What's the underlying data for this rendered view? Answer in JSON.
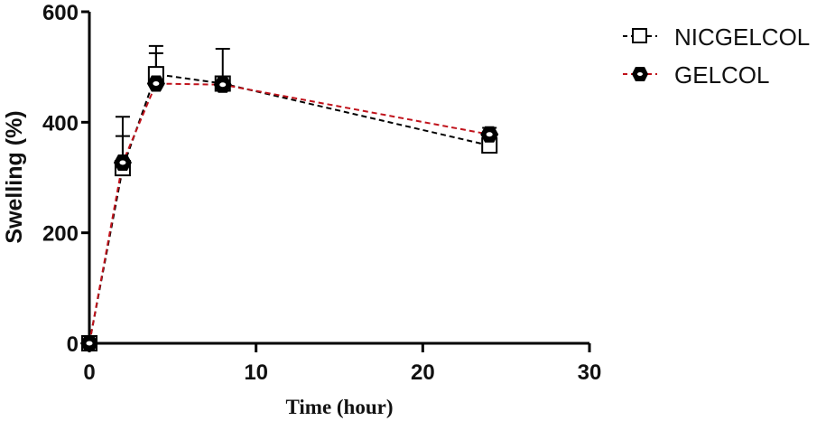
{
  "chart_data": {
    "type": "line",
    "title": "",
    "xlabel": "Time (hour)",
    "ylabel": "Swelling (%)",
    "xlim": [
      0,
      30
    ],
    "ylim": [
      0,
      600
    ],
    "xticks": [
      0,
      10,
      20,
      30
    ],
    "yticks": [
      0,
      200,
      400,
      600
    ],
    "grid": false,
    "legend_position": "top-right",
    "x": [
      0,
      2,
      4,
      8,
      24
    ],
    "series": [
      {
        "name": "NICGELCOL",
        "marker": "open-square",
        "line": "dashed",
        "color": "#000000",
        "values": [
          0,
          317,
          487,
          470,
          358
        ],
        "error_upper": [
          0,
          410,
          538,
          533,
          365
        ]
      },
      {
        "name": "GELCOL",
        "marker": "filled-hexagon",
        "line": "dashed",
        "color": "#c0121b",
        "values": [
          0,
          327,
          470,
          468,
          378
        ],
        "error_upper": [
          0,
          375,
          525,
          480,
          390
        ]
      }
    ]
  },
  "axes": {
    "xlabel": "Time (hour)",
    "ylabel": "Swelling (%)",
    "xtick_labels": [
      "0",
      "10",
      "20",
      "30"
    ],
    "ytick_labels": [
      "0",
      "200",
      "400",
      "600"
    ]
  },
  "legend": {
    "items": [
      {
        "label": "NICGELCOL"
      },
      {
        "label": "GELCOL"
      }
    ]
  }
}
